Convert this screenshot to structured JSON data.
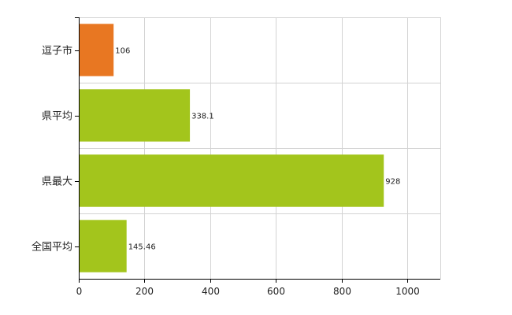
{
  "chart_data": {
    "type": "bar",
    "orientation": "horizontal",
    "categories": [
      "逗子市",
      "県平均",
      "県最大",
      "全国平均"
    ],
    "values": [
      106,
      338.1,
      928,
      145.46
    ],
    "value_labels": [
      "106",
      "338.1",
      "928",
      "145.46"
    ],
    "bar_colors": [
      "#e87722",
      "#a3c51c",
      "#a3c51c",
      "#a3c51c"
    ],
    "xlim": [
      0,
      1100
    ],
    "x_ticks": [
      0,
      200,
      400,
      600,
      800,
      1000
    ],
    "grid": true,
    "title": "",
    "xlabel": "",
    "ylabel": ""
  }
}
